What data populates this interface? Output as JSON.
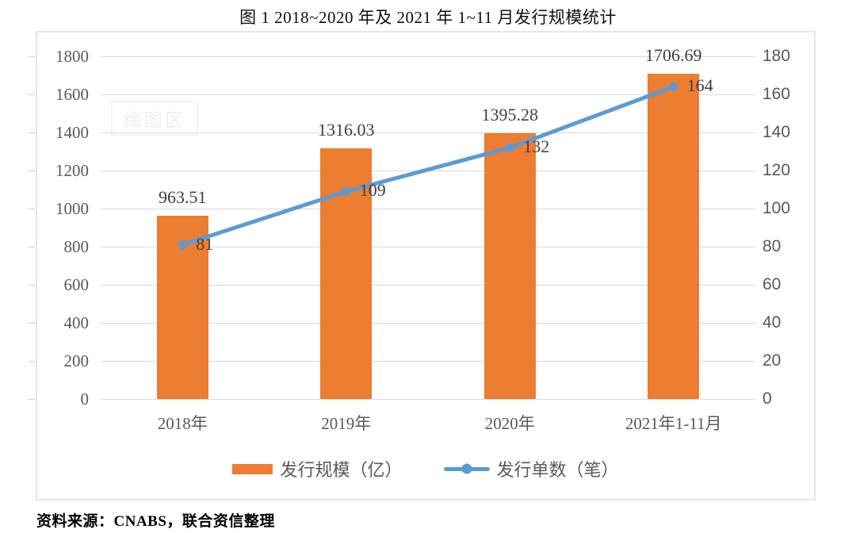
{
  "title": "图 1 2018~2020 年及 2021 年 1~11 月发行规模统计",
  "source_note": "资料来源：CNABS，联合资信整理",
  "plot_area_tooltip": "绘图区",
  "colors": {
    "bar": "#ED7D31",
    "line": "#5B9BD5",
    "gridline": "#D9D9D9",
    "tick_mark": "#CFCFCF",
    "axis_text": "#595959",
    "data_label": "#404040",
    "frame_border": "#E6E6E6"
  },
  "legend": [
    {
      "label": "发行规模（亿）",
      "type": "bar"
    },
    {
      "label": "发行单数（笔）",
      "type": "line"
    }
  ],
  "chart_data": {
    "type": "bar+line",
    "title": "图 1 2018~2020 年及 2021 年 1~11 月发行规模统计",
    "categories": [
      "2018年",
      "2019年",
      "2020年",
      "2021年1-11月"
    ],
    "series": [
      {
        "name": "发行规模（亿）",
        "type": "bar",
        "axis": "left",
        "values": [
          963.51,
          1316.03,
          1395.28,
          1706.69
        ]
      },
      {
        "name": "发行单数（笔）",
        "type": "line",
        "axis": "right",
        "values": [
          81,
          109,
          132,
          164
        ]
      }
    ],
    "left_axis": {
      "min": 0,
      "max": 1800,
      "step": 200,
      "ticks": [
        1800,
        1600,
        1400,
        1200,
        1000,
        800,
        600,
        400,
        200,
        0
      ]
    },
    "right_axis": {
      "min": 0,
      "max": 180,
      "step": 20,
      "ticks": [
        180,
        160,
        140,
        120,
        100,
        80,
        60,
        40,
        20,
        0
      ]
    },
    "grid": true,
    "legend_position": "bottom"
  }
}
